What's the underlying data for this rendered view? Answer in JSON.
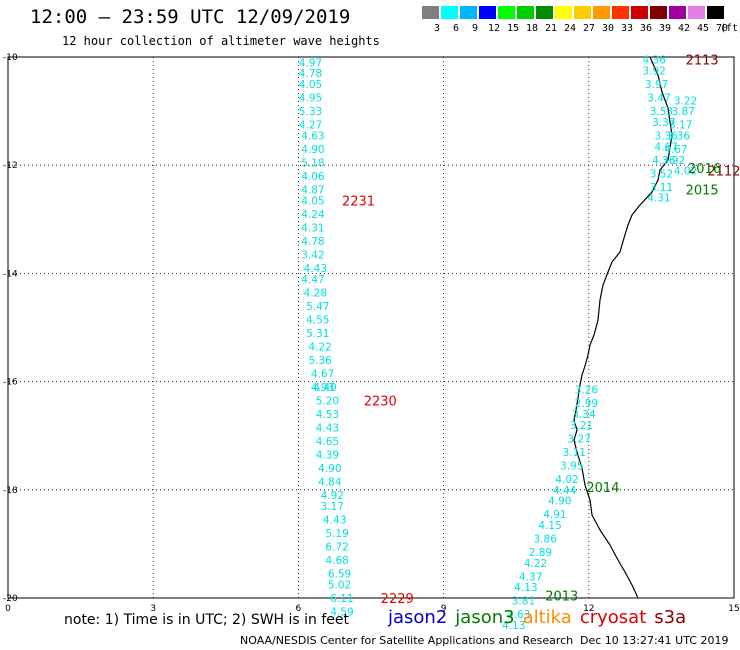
{
  "title": "12:00 – 23:59 UTC 12/09/2019",
  "subtitle": "12 hour collection of altimeter wave heights",
  "colorbar": {
    "unit": "(ft)",
    "bins": [
      {
        "label": "3",
        "color": "#7f7f7f"
      },
      {
        "label": "6",
        "color": "#00ffff"
      },
      {
        "label": "9",
        "color": "#00b4ff"
      },
      {
        "label": "12",
        "color": "#0000ff"
      },
      {
        "label": "15",
        "color": "#00ff00"
      },
      {
        "label": "18",
        "color": "#00d000"
      },
      {
        "label": "21",
        "color": "#008c00"
      },
      {
        "label": "24",
        "color": "#ffff00"
      },
      {
        "label": "27",
        "color": "#ffcc00"
      },
      {
        "label": "30",
        "color": "#ff9900"
      },
      {
        "label": "33",
        "color": "#ff3300"
      },
      {
        "label": "36",
        "color": "#cc0000"
      },
      {
        "label": "39",
        "color": "#800000"
      },
      {
        "label": "42",
        "color": "#a000a0"
      },
      {
        "label": "45",
        "color": "#e080e0"
      },
      {
        "label": "70",
        "color": "#000000"
      }
    ]
  },
  "axes": {
    "lon_range": [
      0,
      15
    ],
    "lat_range": [
      -20,
      -10
    ],
    "x_ticks": [
      "0",
      "3",
      "6",
      "9",
      "12",
      "15"
    ],
    "y_ticks": [
      "-10",
      "-12",
      "-14",
      "-16",
      "-18",
      "-20"
    ]
  },
  "colors": {
    "track_cyan": "#00e0e0",
    "jason3": "#007a00",
    "jason2": "#0000cc",
    "altika": "#ff8c00",
    "cryosat": "#e00000",
    "s3a": "#8b0000"
  },
  "tracks": [
    {
      "id": "2231",
      "label": "2231",
      "label_color": "#e00000",
      "label_lon": 6.9,
      "label_lat": -12.65,
      "points": [
        {
          "lon": 6.25,
          "lat": -10.1,
          "value": "4.97"
        },
        {
          "lon": 6.25,
          "lat": -10.3,
          "value": "4.78"
        },
        {
          "lon": 6.25,
          "lat": -10.5,
          "value": "4.05"
        },
        {
          "lon": 6.25,
          "lat": -10.75,
          "value": "4.95"
        },
        {
          "lon": 6.25,
          "lat": -11.0,
          "value": "5.33"
        },
        {
          "lon": 6.25,
          "lat": -11.25,
          "value": "4.27"
        },
        {
          "lon": 6.3,
          "lat": -11.45,
          "value": "4.63"
        },
        {
          "lon": 6.3,
          "lat": -11.7,
          "value": "4.90"
        },
        {
          "lon": 6.3,
          "lat": -11.95,
          "value": "5.18"
        },
        {
          "lon": 6.3,
          "lat": -12.2,
          "value": "4.06"
        },
        {
          "lon": 6.3,
          "lat": -12.45,
          "value": "4.87"
        },
        {
          "lon": 6.3,
          "lat": -12.65,
          "value": "4.05"
        },
        {
          "lon": 6.3,
          "lat": -12.9,
          "value": "4.24"
        },
        {
          "lon": 6.3,
          "lat": -13.15,
          "value": "4.31"
        },
        {
          "lon": 6.3,
          "lat": -13.4,
          "value": "4.78"
        },
        {
          "lon": 6.3,
          "lat": -13.65,
          "value": "3.42"
        },
        {
          "lon": 6.35,
          "lat": -13.9,
          "value": "4.43"
        },
        {
          "lon": 6.3,
          "lat": -14.1,
          "value": "4.47"
        },
        {
          "lon": 6.35,
          "lat": -14.35,
          "value": "4.28"
        },
        {
          "lon": 6.4,
          "lat": -14.6,
          "value": "5.47"
        },
        {
          "lon": 6.4,
          "lat": -14.85,
          "value": "4.55"
        },
        {
          "lon": 6.4,
          "lat": -15.1,
          "value": "5.31"
        },
        {
          "lon": 6.45,
          "lat": -15.35,
          "value": "4.22"
        },
        {
          "lon": 6.45,
          "lat": -15.6,
          "value": "5.36"
        },
        {
          "lon": 6.5,
          "lat": -15.85,
          "value": "4.67"
        },
        {
          "lon": 6.5,
          "lat": -16.1,
          "value": "4.93"
        }
      ]
    },
    {
      "id": "2230",
      "label": "2230",
      "label_color": "#e00000",
      "label_lon": 7.35,
      "label_lat": -16.35,
      "points": [
        {
          "lon": 6.55,
          "lat": -16.1,
          "value": "4.40"
        },
        {
          "lon": 6.6,
          "lat": -16.35,
          "value": "5.20"
        },
        {
          "lon": 6.6,
          "lat": -16.6,
          "value": "4.53"
        },
        {
          "lon": 6.6,
          "lat": -16.85,
          "value": "4.43"
        },
        {
          "lon": 6.6,
          "lat": -17.1,
          "value": "4.65"
        },
        {
          "lon": 6.6,
          "lat": -17.35,
          "value": "4.39"
        },
        {
          "lon": 6.65,
          "lat": -17.6,
          "value": "4.90"
        },
        {
          "lon": 6.65,
          "lat": -17.85,
          "value": "4.84"
        },
        {
          "lon": 6.7,
          "lat": -18.1,
          "value": "4.92"
        },
        {
          "lon": 6.7,
          "lat": -18.3,
          "value": "3.17"
        },
        {
          "lon": 6.75,
          "lat": -18.55,
          "value": "4.43"
        },
        {
          "lon": 6.8,
          "lat": -18.8,
          "value": "5.19"
        },
        {
          "lon": 6.8,
          "lat": -19.05,
          "value": "6.72"
        }
      ]
    },
    {
      "id": "2229",
      "label": "2229",
      "label_color": "#e00000",
      "label_lon": 7.7,
      "label_lat": -20.0,
      "points": [
        {
          "lon": 6.8,
          "lat": -19.3,
          "value": "4.68"
        },
        {
          "lon": 6.85,
          "lat": -19.55,
          "value": "6.59"
        },
        {
          "lon": 6.85,
          "lat": -19.75,
          "value": "5.02"
        },
        {
          "lon": 6.9,
          "lat": -20.0,
          "value": "6.11"
        },
        {
          "lon": 6.9,
          "lat": -20.25,
          "value": "4.59"
        }
      ]
    },
    {
      "id": "2113",
      "label": "2113",
      "label_color": "#8b0000",
      "label_lon": 14.0,
      "label_lat": -10.05,
      "points": [
        {
          "lon": 13.35,
          "lat": -10.05,
          "value": "4.36"
        },
        {
          "lon": 13.35,
          "lat": -10.25,
          "value": "3.92"
        },
        {
          "lon": 13.4,
          "lat": -10.5,
          "value": "3.97"
        },
        {
          "lon": 13.45,
          "lat": -10.75,
          "value": "3.47"
        },
        {
          "lon": 13.5,
          "lat": -11.0,
          "value": "3.53"
        },
        {
          "lon": 13.55,
          "lat": -11.2,
          "value": "3.37"
        },
        {
          "lon": 13.6,
          "lat": -11.45,
          "value": "3.36"
        },
        {
          "lon": 13.6,
          "lat": -11.65,
          "value": "4.67"
        },
        {
          "lon": 13.55,
          "lat": -11.9,
          "value": "4.36"
        },
        {
          "lon": 13.5,
          "lat": -12.15,
          "value": "3.52"
        },
        {
          "lon": 13.5,
          "lat": -12.4,
          "value": "3.11"
        },
        {
          "lon": 13.45,
          "lat": -12.6,
          "value": "4.31"
        }
      ]
    },
    {
      "id": "2112",
      "label": "2112",
      "label_color": "#8b0000",
      "label_lon": 14.45,
      "label_lat": -12.1,
      "points": [
        {
          "lon": 14.0,
          "lat": -10.8,
          "value": "3.22"
        },
        {
          "lon": 13.95,
          "lat": -11.0,
          "value": "3.87"
        },
        {
          "lon": 13.9,
          "lat": -11.25,
          "value": "3.17"
        },
        {
          "lon": 13.85,
          "lat": -11.45,
          "value": "3.36"
        },
        {
          "lon": 13.8,
          "lat": -11.7,
          "value": "4.67"
        },
        {
          "lon": 13.75,
          "lat": -11.9,
          "value": "3.92"
        },
        {
          "lon": 14.0,
          "lat": -12.1,
          "value": "4.02"
        }
      ]
    },
    {
      "id": "2016",
      "label": "2016",
      "label_color": "#007a00",
      "label_lon": 14.05,
      "label_lat": -12.05,
      "points": []
    },
    {
      "id": "2015",
      "label": "2015",
      "label_color": "#007a00",
      "label_lon": 14.0,
      "label_lat": -12.45,
      "points": []
    },
    {
      "id": "2014",
      "label": "2014",
      "label_color": "#007a00",
      "label_lon": 11.95,
      "label_lat": -17.95,
      "points": [
        {
          "lon": 11.95,
          "lat": -16.15,
          "value": "3.26"
        },
        {
          "lon": 11.95,
          "lat": -16.4,
          "value": "2.99"
        },
        {
          "lon": 11.9,
          "lat": -16.6,
          "value": "3.34"
        },
        {
          "lon": 11.85,
          "lat": -16.8,
          "value": "3.21"
        },
        {
          "lon": 11.8,
          "lat": -17.05,
          "value": "3.27"
        },
        {
          "lon": 11.7,
          "lat": -17.3,
          "value": "3.11"
        },
        {
          "lon": 11.65,
          "lat": -17.55,
          "value": "3.95"
        },
        {
          "lon": 11.55,
          "lat": -17.8,
          "value": "4.02"
        },
        {
          "lon": 11.5,
          "lat": -18.0,
          "value": "4.44"
        },
        {
          "lon": 11.4,
          "lat": -18.2,
          "value": "4.90"
        }
      ]
    },
    {
      "id": "2013",
      "label": "2013",
      "label_color": "#007a00",
      "label_lon": 11.1,
      "label_lat": -19.95,
      "points": [
        {
          "lon": 11.3,
          "lat": -18.45,
          "value": "4.91"
        },
        {
          "lon": 11.2,
          "lat": -18.65,
          "value": "4.15"
        },
        {
          "lon": 11.1,
          "lat": -18.9,
          "value": "3.86"
        },
        {
          "lon": 11.0,
          "lat": -19.15,
          "value": "2.89"
        },
        {
          "lon": 10.9,
          "lat": -19.35,
          "value": "4.22"
        },
        {
          "lon": 10.8,
          "lat": -19.6,
          "value": "4.37"
        },
        {
          "lon": 10.7,
          "lat": -19.8,
          "value": "4.13"
        },
        {
          "lon": 10.65,
          "lat": -20.05,
          "value": "3.81"
        },
        {
          "lon": 10.55,
          "lat": -20.3,
          "value": "3.63"
        },
        {
          "lon": 10.45,
          "lat": -20.5,
          "value": "4.13"
        }
      ]
    }
  ],
  "footer": {
    "note": "note: 1) Time is in UTC; 2) SWH is in feet",
    "missions": [
      {
        "name": "jason2",
        "color": "#0000cc"
      },
      {
        "name": "jason3",
        "color": "#007a00"
      },
      {
        "name": "altika",
        "color": "#ff8c00"
      },
      {
        "name": "cryosat",
        "color": "#e00000"
      },
      {
        "name": "s3a",
        "color": "#8b0000"
      }
    ],
    "credit": "NOAA/NESDIS Center for Satellite Applications and Research",
    "timestamp": "Dec 10 13:27:41 UTC 2019"
  }
}
